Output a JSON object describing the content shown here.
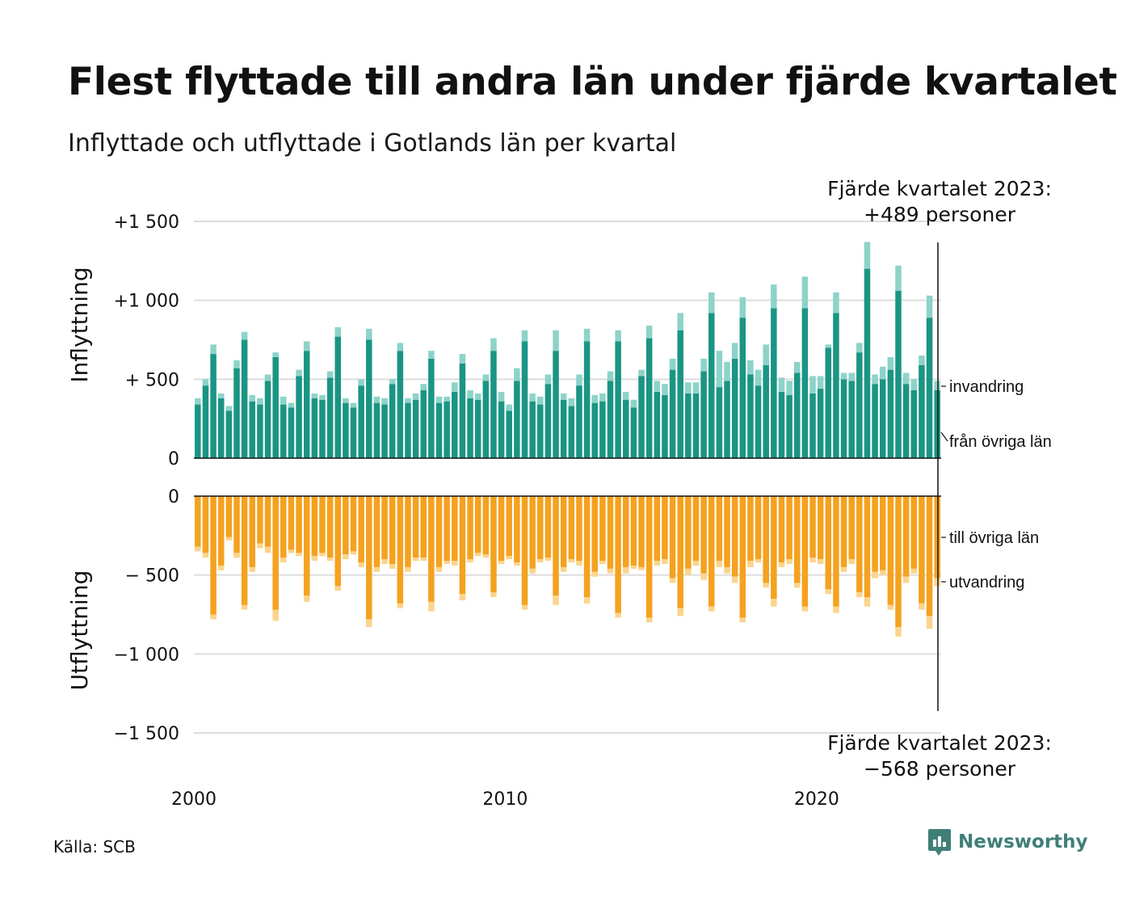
{
  "title": "Flest flyttade till andra län under fjärde kvartalet",
  "subtitle": "Inflyttade och utflyttade i Gotlands län per kvartal",
  "source": "Källa: SCB",
  "logo_text": "Newsworthy",
  "annotation_top": {
    "line1": "Fjärde kvartalet 2023:",
    "line2": "+489 personer"
  },
  "annotation_bottom": {
    "line1": "Fjärde kvartalet 2023:",
    "line2": "−568 personer"
  },
  "colors": {
    "in_other": "#1a9584",
    "in_immigration": "#8dd3c9",
    "out_other": "#f4a21f",
    "out_emigration": "#fbd48d",
    "grid": "#dddddd",
    "logo": "#3f7f78"
  },
  "chart_data": {
    "type": "bar",
    "stacked": true,
    "x_unit": "quarter",
    "x_start": "2000 Q1",
    "x_end": "2023 Q4",
    "x_tick_labels": [
      "2000",
      "2010",
      "2020"
    ],
    "panels": [
      {
        "ylabel": "Inflyttning",
        "ylim": [
          0,
          1500
        ],
        "y_tick_labels": [
          "0",
          "+  500",
          "+1 000",
          "+1 500"
        ],
        "y_ticks": [
          0,
          500,
          1000,
          1500
        ],
        "series": [
          {
            "name": "från övriga län",
            "color": "#1a9584",
            "values": [
              340,
              460,
              660,
              380,
              300,
              570,
              750,
              360,
              340,
              490,
              640,
              340,
              320,
              520,
              680,
              380,
              370,
              510,
              770,
              350,
              320,
              460,
              750,
              350,
              340,
              470,
              680,
              350,
              370,
              430,
              630,
              350,
              360,
              420,
              600,
              380,
              370,
              490,
              680,
              360,
              300,
              490,
              740,
              360,
              340,
              470,
              680,
              370,
              330,
              460,
              740,
              350,
              360,
              490,
              740,
              370,
              320,
              520,
              760,
              420,
              400,
              560,
              810,
              410,
              410,
              550,
              920,
              450,
              490,
              630,
              890,
              530,
              460,
              590,
              950,
              420,
              400,
              540,
              950,
              410,
              440,
              700,
              920,
              500,
              490,
              670,
              1200,
              470,
              500,
              560,
              1060,
              470,
              430,
              590,
              890,
              430
            ]
          },
          {
            "name": "invandring",
            "color": "#8dd3c9",
            "values": [
              40,
              40,
              60,
              30,
              30,
              50,
              50,
              40,
              40,
              40,
              30,
              50,
              30,
              40,
              60,
              30,
              30,
              40,
              60,
              30,
              30,
              40,
              70,
              40,
              40,
              30,
              50,
              30,
              40,
              40,
              50,
              40,
              30,
              60,
              60,
              50,
              40,
              40,
              80,
              60,
              40,
              80,
              70,
              50,
              50,
              60,
              130,
              40,
              50,
              70,
              80,
              50,
              50,
              60,
              70,
              50,
              50,
              40,
              80,
              70,
              70,
              70,
              110,
              70,
              70,
              80,
              130,
              230,
              120,
              100,
              130,
              90,
              100,
              130,
              150,
              90,
              90,
              70,
              200,
              110,
              80,
              20,
              130,
              40,
              50,
              60,
              170,
              60,
              80,
              80,
              160,
              70,
              70,
              60,
              140,
              60
            ]
          }
        ]
      },
      {
        "ylabel": "Utflyttning",
        "ylim": [
          -1500,
          0
        ],
        "y_tick_labels": [
          "0",
          "−  500",
          "−1 000",
          "−1 500"
        ],
        "y_ticks": [
          0,
          -500,
          -1000,
          -1500
        ],
        "series": [
          {
            "name": "till övriga län",
            "color": "#f4a21f",
            "values": [
              -320,
              -360,
              -750,
              -440,
              -260,
              -360,
              -690,
              -450,
              -300,
              -320,
              -720,
              -390,
              -340,
              -360,
              -630,
              -380,
              -360,
              -390,
              -570,
              -370,
              -350,
              -420,
              -780,
              -450,
              -400,
              -430,
              -680,
              -450,
              -390,
              -390,
              -670,
              -450,
              -410,
              -410,
              -620,
              -400,
              -360,
              -370,
              -610,
              -410,
              -380,
              -420,
              -690,
              -460,
              -400,
              -390,
              -630,
              -450,
              -400,
              -410,
              -640,
              -480,
              -410,
              -460,
              -740,
              -450,
              -440,
              -450,
              -770,
              -410,
              -400,
              -520,
              -710,
              -460,
              -410,
              -490,
              -700,
              -410,
              -450,
              -510,
              -770,
              -410,
              -400,
              -550,
              -650,
              -420,
              -400,
              -550,
              -700,
              -390,
              -400,
              -590,
              -700,
              -450,
              -400,
              -610,
              -640,
              -480,
              -470,
              -690,
              -830,
              -510,
              -460,
              -680,
              -760,
              -520
            ]
          },
          {
            "name": "utvandring",
            "color": "#fbd48d",
            "values": [
              -30,
              -30,
              -30,
              -30,
              -20,
              -30,
              -30,
              -30,
              -30,
              -40,
              -70,
              -30,
              -20,
              -20,
              -40,
              -30,
              -20,
              -20,
              -30,
              -30,
              -20,
              -30,
              -50,
              -30,
              -30,
              -30,
              -30,
              -30,
              -20,
              -20,
              -60,
              -30,
              -20,
              -30,
              -40,
              -20,
              -20,
              -20,
              -30,
              -20,
              -20,
              -20,
              -30,
              -30,
              -20,
              -20,
              -60,
              -30,
              -20,
              -30,
              -40,
              -30,
              -20,
              -30,
              -30,
              -40,
              -20,
              -20,
              -30,
              -30,
              -30,
              -30,
              -50,
              -40,
              -30,
              -40,
              -30,
              -40,
              -40,
              -40,
              -30,
              -40,
              -20,
              -30,
              -50,
              -30,
              -30,
              -30,
              -30,
              -30,
              -30,
              -30,
              -40,
              -30,
              -30,
              -30,
              -60,
              -40,
              -30,
              -30,
              -60,
              -40,
              -30,
              -40,
              -80,
              -50
            ]
          }
        ]
      }
    ],
    "series_labels_right": [
      "invandring",
      "från övriga län",
      "till övriga län",
      "utvandring"
    ]
  }
}
